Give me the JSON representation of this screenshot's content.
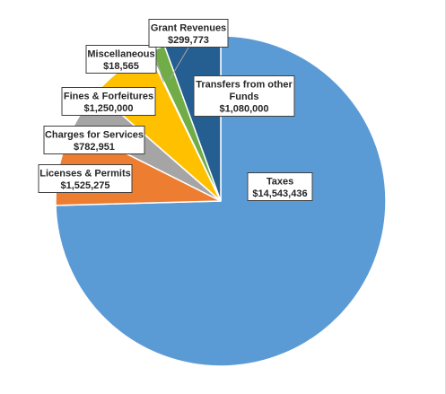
{
  "chart_data": {
    "type": "pie",
    "title": "",
    "start_angle_deg": 0,
    "direction": "clockwise",
    "slices": [
      {
        "label": "Taxes",
        "value_text": "$14,543,436",
        "value": 14543436,
        "color": "#5b9bd5"
      },
      {
        "label": "Licenses & Permits",
        "value_text": "$1,525,275",
        "value": 1525275,
        "color": "#ed7d31"
      },
      {
        "label": "Charges for Services",
        "value_text": "$782,951",
        "value": 782951,
        "color": "#a5a5a5"
      },
      {
        "label": "Fines & Forfeitures",
        "value_text": "$1,250,000",
        "value": 1250000,
        "color": "#ffc000"
      },
      {
        "label": "Miscellaneous",
        "value_text": "$18,565",
        "value": 18565,
        "color": "#4472c4"
      },
      {
        "label": "Grant Revenues",
        "value_text": "$299,773",
        "value": 299773,
        "color": "#70ad47"
      },
      {
        "label": "Transfers from other Funds",
        "value_text": "$1,080,000",
        "value": 1080000,
        "color": "#255e91"
      }
    ]
  }
}
